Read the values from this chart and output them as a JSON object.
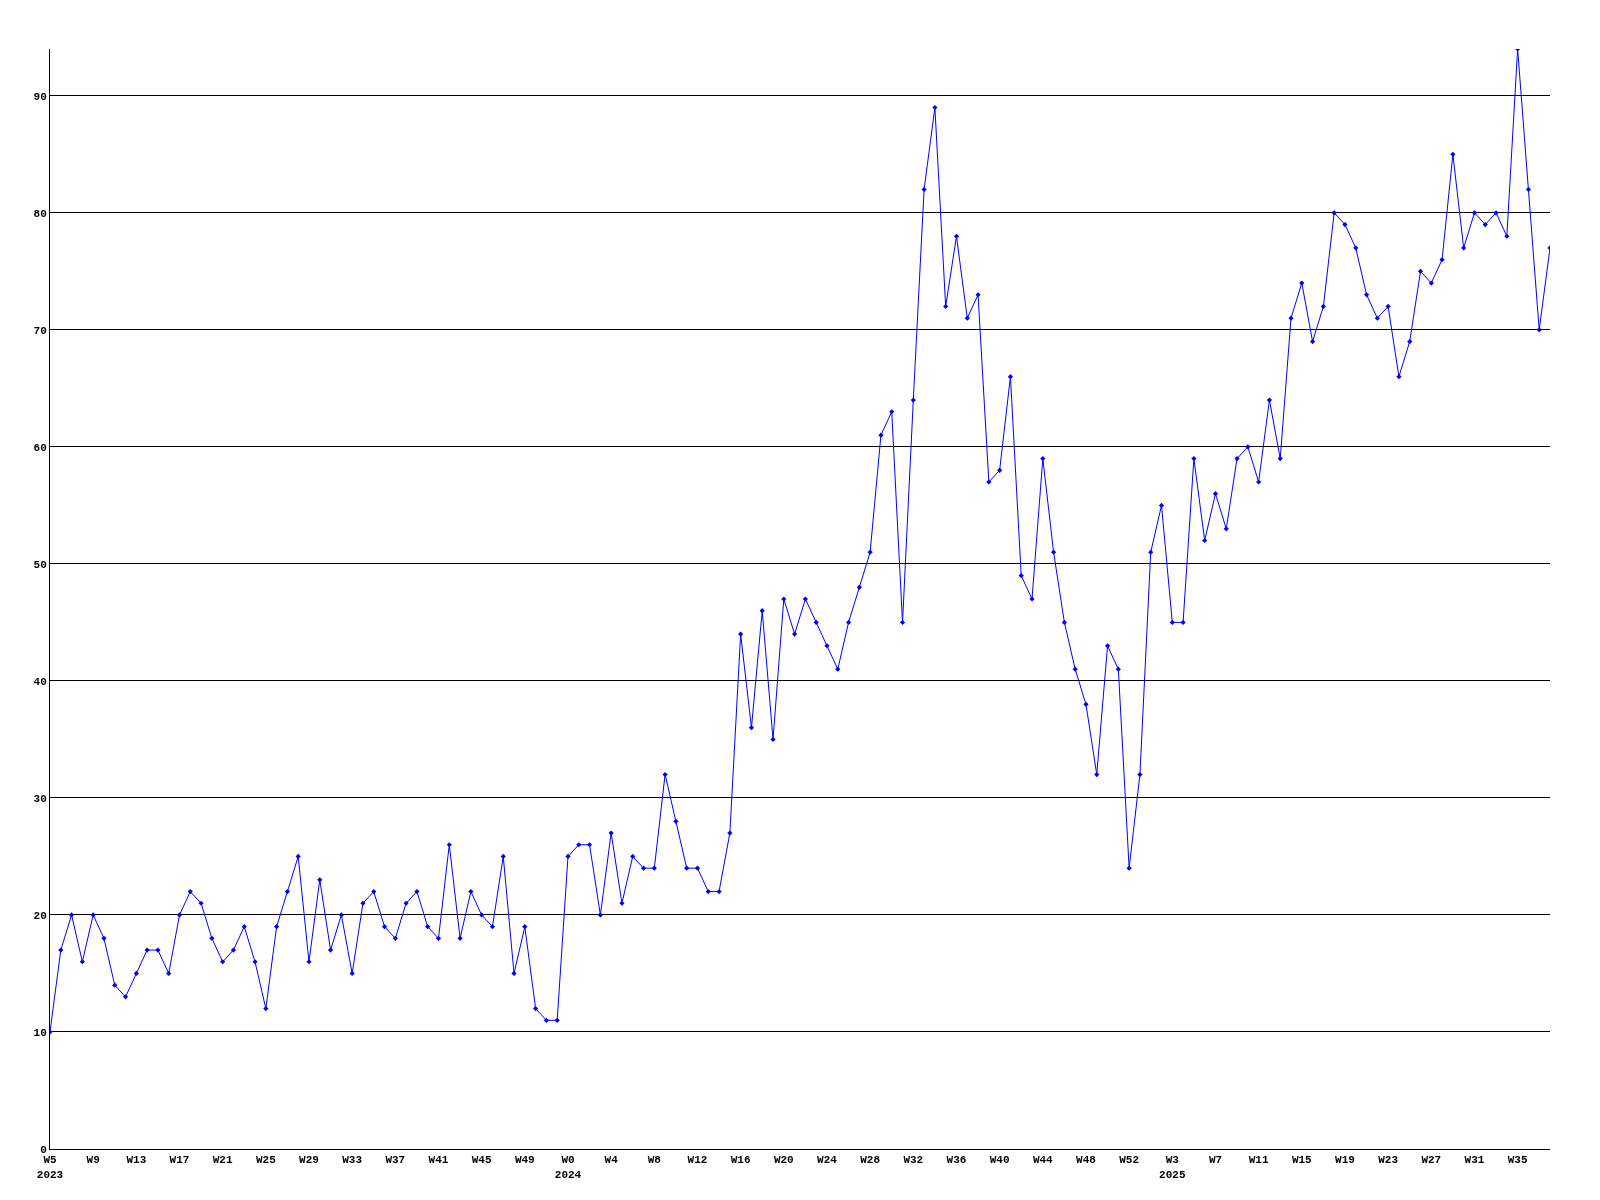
{
  "chart_data": {
    "type": "line",
    "categories": [
      "W5\n2023",
      null,
      null,
      null,
      "W9",
      null,
      null,
      null,
      "W13",
      null,
      null,
      null,
      "W17",
      null,
      null,
      null,
      "W21",
      null,
      null,
      null,
      "W25",
      null,
      null,
      null,
      "W29",
      null,
      null,
      null,
      "W33",
      null,
      null,
      null,
      "W37",
      null,
      null,
      null,
      "W41",
      null,
      null,
      null,
      "W45",
      null,
      null,
      null,
      "W49",
      null,
      null,
      null,
      "W0\n2024",
      null,
      null,
      null,
      "W4",
      null,
      null,
      null,
      "W8",
      null,
      null,
      null,
      "W12",
      null,
      null,
      null,
      "W16",
      null,
      null,
      null,
      "W20",
      null,
      null,
      null,
      "W24",
      null,
      null,
      null,
      "W28",
      null,
      null,
      null,
      "W32",
      null,
      null,
      null,
      "W36",
      null,
      null,
      null,
      "W40",
      null,
      null,
      null,
      "W44",
      null,
      null,
      null,
      "W48",
      null,
      null,
      null,
      "W52",
      null,
      null,
      null,
      "W3\n2025",
      null,
      null,
      null,
      "W7",
      null,
      null,
      null,
      "W11",
      null,
      null,
      null,
      "W15",
      null,
      null,
      null,
      "W19",
      null,
      null,
      null,
      "W23",
      null,
      null,
      null,
      "W27",
      null,
      null,
      null,
      "W31",
      null,
      null,
      null,
      "W35",
      null,
      null,
      null
    ],
    "series": [
      {
        "color": "#0000ff",
        "values": [
          10,
          17,
          20,
          16,
          20,
          18,
          14,
          13,
          15,
          17,
          17,
          15,
          20,
          22,
          21,
          18,
          16,
          17,
          19,
          16,
          12,
          19,
          22,
          25,
          16,
          23,
          17,
          20,
          15,
          21,
          22,
          19,
          18,
          21,
          22,
          19,
          18,
          26,
          18,
          22,
          20,
          19,
          25,
          15,
          19,
          12,
          11,
          11,
          25,
          26,
          26,
          20,
          27,
          21,
          25,
          24,
          24,
          32,
          28,
          24,
          24,
          22,
          22,
          27,
          44,
          36,
          46,
          35,
          47,
          44,
          47,
          45,
          43,
          41,
          45,
          48,
          51,
          61,
          63,
          45,
          64,
          82,
          89,
          72,
          78,
          71,
          73,
          57,
          58,
          66,
          49,
          47,
          59,
          51,
          45,
          41,
          38,
          32,
          43,
          41,
          24,
          32,
          51,
          55,
          45,
          45,
          59,
          52,
          56,
          53,
          59,
          60,
          57,
          64,
          59,
          71,
          74,
          69,
          72,
          80,
          79,
          77,
          73,
          71,
          72,
          66,
          69,
          75,
          74,
          76,
          85,
          77,
          80,
          79,
          80,
          78,
          94,
          82,
          70,
          77
        ]
      }
    ],
    "ylim": [
      0,
      94
    ],
    "yticks": [
      0,
      10,
      20,
      30,
      40,
      50,
      60,
      70,
      80,
      90
    ],
    "grid": "y",
    "marker": "diamond",
    "line_style": "solid"
  }
}
